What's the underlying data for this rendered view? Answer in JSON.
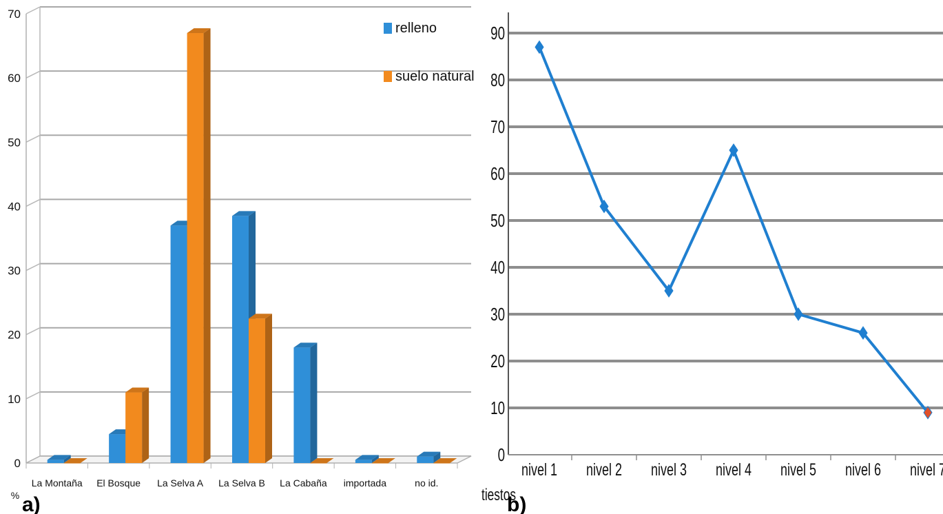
{
  "panels": {
    "a": {
      "label": "a)"
    },
    "b": {
      "label": "b)"
    }
  },
  "chart_data": [
    {
      "type": "bar",
      "ylabel": "%",
      "ylim": [
        0,
        70
      ],
      "yticks": [
        0,
        10,
        20,
        30,
        40,
        50,
        60,
        70
      ],
      "grid": true,
      "legend_position": "top-right",
      "categories": [
        "La Montaña",
        "El Bosque",
        "La Selva A",
        "La Selva B",
        "La Cabaña",
        "importada",
        "no id."
      ],
      "series": [
        {
          "name": "relleno",
          "color": "#2f8fd8",
          "values": [
            0.5,
            4.5,
            37,
            38.5,
            18,
            0.5,
            1
          ]
        },
        {
          "name": "suelo natural",
          "color": "#f28a1e",
          "values": [
            0,
            11,
            67,
            22.5,
            0,
            0,
            0
          ]
        }
      ]
    },
    {
      "type": "line",
      "xlabel": "tiestos",
      "ylim": [
        0,
        90
      ],
      "yticks": [
        0,
        10,
        20,
        30,
        40,
        50,
        60,
        70,
        80,
        90
      ],
      "grid": true,
      "categories": [
        "nivel 1",
        "nivel 2",
        "nivel 3",
        "nivel 4",
        "nivel 5",
        "nivel 6",
        "nivel 7"
      ],
      "series": [
        {
          "color": "#1f7fd0",
          "last_point_color": "#e0502a",
          "values": [
            87,
            53,
            35,
            65,
            30,
            26,
            9
          ]
        }
      ]
    }
  ]
}
